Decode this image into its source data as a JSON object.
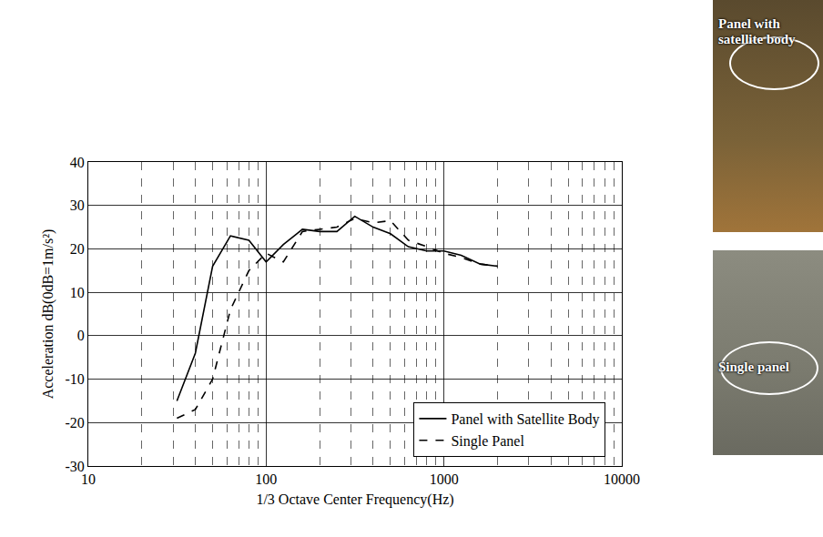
{
  "chart_data": {
    "type": "line",
    "xlabel": "1/3 Octave Center Frequency(Hz)",
    "ylabel": "Acceleration dB(0dB=1m/s²)",
    "log": "x",
    "grid": true,
    "legend": "bottom right",
    "xlim": [
      10,
      10000
    ],
    "xticks": [
      10,
      100,
      1000,
      10000
    ],
    "ylim": [
      -30,
      40
    ],
    "yticks": [
      -30,
      -20,
      -10,
      0,
      10,
      20,
      30,
      40
    ],
    "x": [
      31.5,
      40,
      50,
      63,
      80,
      100,
      125,
      160,
      200,
      250,
      315,
      400,
      500,
      630,
      800,
      1000,
      1250,
      1600,
      2000
    ],
    "series": [
      {
        "name": "Panel with Satellite Body",
        "color": "#000000",
        "line_style": "solid",
        "values": [
          -15,
          -4,
          16,
          23,
          22,
          17,
          21,
          24.5,
          24,
          24,
          27.5,
          25,
          23.5,
          20.5,
          19.5,
          19.5,
          18.5,
          16.5,
          16
        ]
      },
      {
        "name": "Single Panel",
        "color": "#000000",
        "line_style": "dash",
        "values": [
          -19,
          -17,
          -10,
          6,
          15,
          19,
          17,
          24,
          24.5,
          25,
          27,
          26,
          26.5,
          22,
          20.5,
          19,
          18,
          16.5,
          16
        ]
      }
    ]
  },
  "photos": [
    {
      "label": "Panel with satellite body"
    },
    {
      "label": "Single panel"
    }
  ]
}
